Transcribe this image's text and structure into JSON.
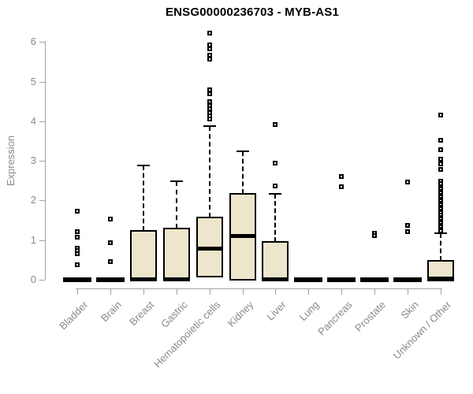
{
  "chart_data": {
    "type": "boxplot",
    "title": "ENSG00000236703 - MYB-AS1",
    "ylabel": "Expression",
    "xlabel": "",
    "ylim": [
      0,
      6.3
    ],
    "yticks": [
      0,
      1,
      2,
      3,
      4,
      5,
      6
    ],
    "grid": false,
    "legend": "none",
    "colors": {
      "box_fill": "#ede6cd",
      "box_border": "#000000",
      "axis_line": "#a3a3a3",
      "axis_text": "#8a8a8a",
      "title_text": "#000000"
    },
    "categories": [
      "Bladder",
      "Brain",
      "Breast",
      "Gastric",
      "Hematopoietic cells",
      "Kidney",
      "Liver",
      "Lung",
      "Pancreas",
      "Prostate",
      "Skin",
      "Unknown / Other"
    ],
    "series": [
      {
        "category": "Bladder",
        "collapsed": true,
        "q1": 0,
        "median": 0,
        "q3": 0,
        "whisker_high": 0,
        "outliers": [
          1.73,
          1.21,
          1.08,
          0.8,
          0.74,
          0.66,
          0.38
        ]
      },
      {
        "category": "Brain",
        "collapsed": true,
        "q1": 0,
        "median": 0,
        "q3": 0,
        "whisker_high": 0,
        "outliers": [
          1.53,
          0.93,
          0.46
        ]
      },
      {
        "category": "Breast",
        "collapsed": false,
        "q1": 0,
        "median": 0.02,
        "q3": 1.23,
        "whisker_high": 2.88,
        "outliers": []
      },
      {
        "category": "Gastric",
        "collapsed": false,
        "q1": 0,
        "median": 0.02,
        "q3": 1.29,
        "whisker_high": 2.48,
        "outliers": []
      },
      {
        "category": "Hematopoietic cells",
        "collapsed": false,
        "q1": 0.1,
        "median": 0.8,
        "q3": 1.58,
        "whisker_high": 3.87,
        "outliers": [
          6.22,
          5.92,
          5.82,
          5.66,
          5.56,
          4.79,
          4.69,
          4.49,
          4.4,
          4.31,
          4.22,
          4.13,
          4.05
        ]
      },
      {
        "category": "Kidney",
        "collapsed": false,
        "q1": 0.02,
        "median": 1.12,
        "q3": 2.16,
        "whisker_high": 3.25,
        "outliers": []
      },
      {
        "category": "Liver",
        "collapsed": false,
        "q1": 0,
        "median": 0.02,
        "q3": 0.95,
        "whisker_high": 2.17,
        "outliers": [
          3.92,
          2.94,
          2.36
        ]
      },
      {
        "category": "Lung",
        "collapsed": true,
        "q1": 0,
        "median": 0,
        "q3": 0,
        "whisker_high": 0,
        "outliers": []
      },
      {
        "category": "Pancreas",
        "collapsed": true,
        "q1": 0,
        "median": 0,
        "q3": 0,
        "whisker_high": 0,
        "outliers": [
          2.61,
          2.35
        ]
      },
      {
        "category": "Prostate",
        "collapsed": true,
        "q1": 0,
        "median": 0,
        "q3": 0,
        "whisker_high": 0,
        "outliers": [
          1.18,
          1.11
        ]
      },
      {
        "category": "Skin",
        "collapsed": true,
        "q1": 0,
        "median": 0,
        "q3": 0,
        "whisker_high": 0,
        "outliers": [
          2.47,
          1.38,
          1.21
        ]
      },
      {
        "category": "Unknown / Other",
        "collapsed": false,
        "q1": 0,
        "median": 0.03,
        "q3": 0.48,
        "whisker_high": 1.18,
        "outliers": [
          4.15,
          3.52,
          3.28,
          3.05,
          2.92,
          2.78,
          2.48,
          2.42,
          2.33,
          2.28,
          2.23,
          2.18,
          2.13,
          2.08,
          2.03,
          1.98,
          1.93,
          1.88,
          1.83,
          1.78,
          1.73,
          1.68,
          1.63,
          1.58,
          1.53,
          1.48,
          1.43,
          1.38,
          1.33,
          1.28,
          1.24
        ]
      }
    ]
  }
}
